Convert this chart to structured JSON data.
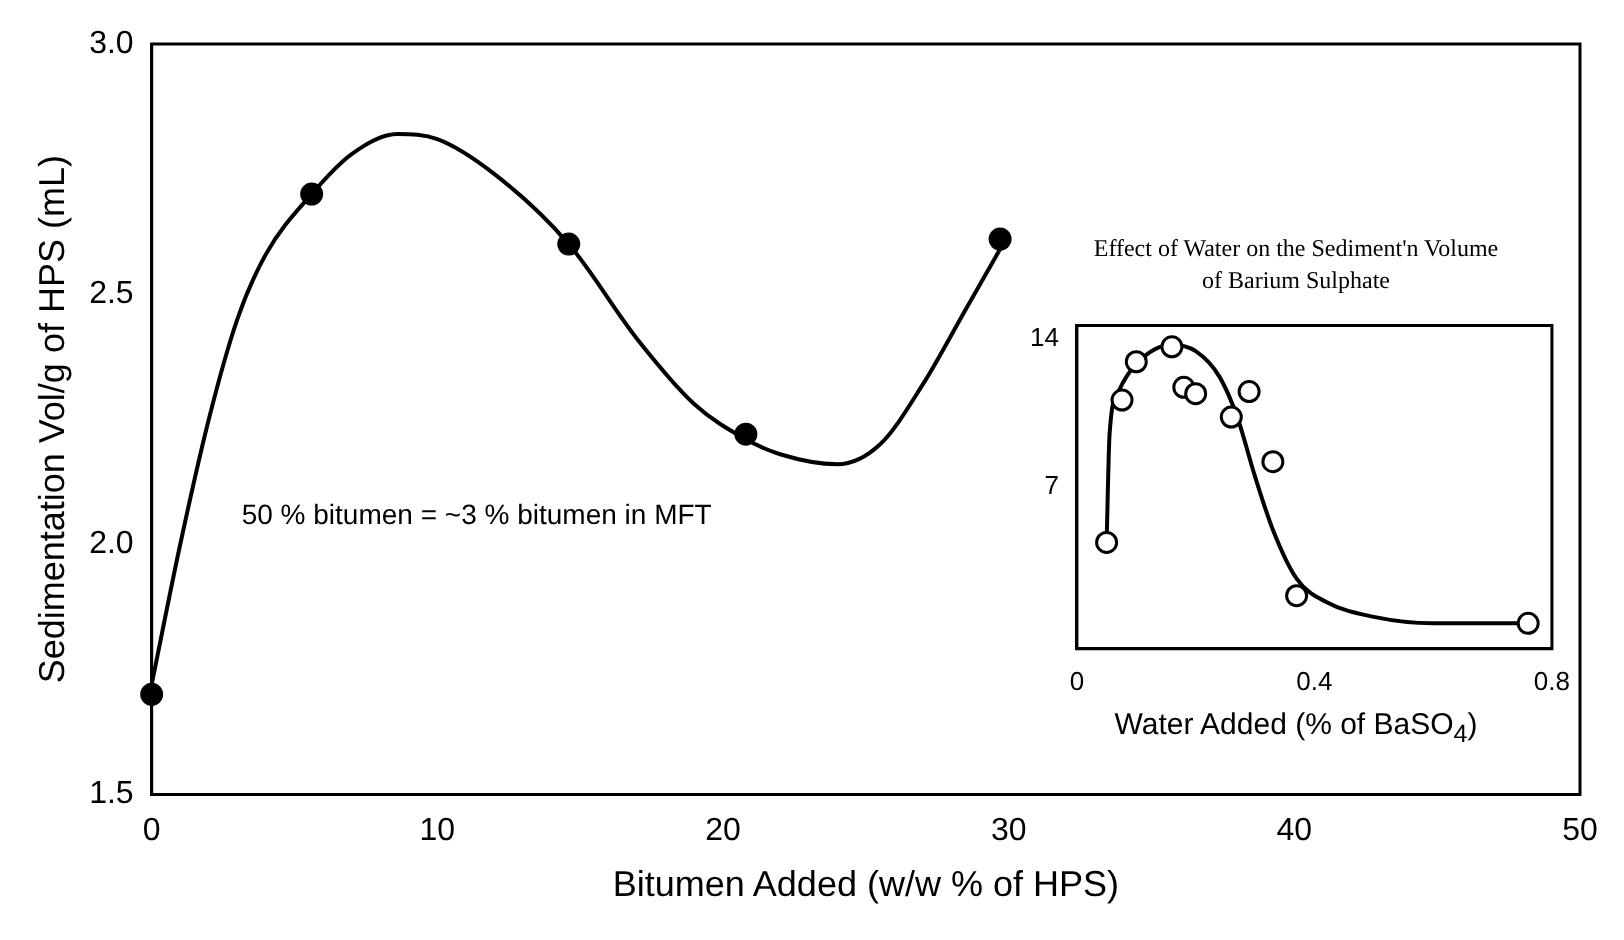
{
  "chart_data": [
    {
      "type": "scatter",
      "xlabel": "Bitumen Added (w/w % of HPS)",
      "ylabel": "Sedimentation Vol/g of HPS (mL)",
      "annotations": [
        "50 % bitumen = ~3 % bitumen in MFT"
      ],
      "xlim": [
        0,
        50
      ],
      "xticks": [
        0,
        10,
        20,
        30,
        40,
        50
      ],
      "ylim": [
        1.5,
        3.0
      ],
      "yticks": [
        1.5,
        {
          "value": 2,
          "label": "2.0"
        },
        2.5,
        {
          "value": 3,
          "label": "3.0"
        }
      ],
      "series": [
        {
          "marker": "circle",
          "color": "#000000",
          "x": [
            0,
            5.6,
            14.6,
            20.8,
            29.7
          ],
          "values": [
            1.7,
            2.7,
            2.6,
            2.22,
            2.61
          ]
        },
        {
          "type": "line",
          "marker": "none",
          "color": "#000000",
          "x": [
            0,
            1,
            2,
            3,
            4,
            5.6,
            7,
            8.6,
            10,
            12,
            14.6,
            17,
            19,
            20.8,
            22,
            24,
            25.5,
            27,
            28.5,
            29.7
          ],
          "values": [
            1.72,
            2.0,
            2.25,
            2.45,
            2.58,
            2.7,
            2.78,
            2.82,
            2.81,
            2.74,
            2.6,
            2.41,
            2.28,
            2.21,
            2.18,
            2.16,
            2.2,
            2.32,
            2.47,
            2.59
          ]
        }
      ]
    },
    {
      "type": "scatter",
      "title": "Effect of Water on the Sediment'n Volume of Barium Sulphate",
      "xlabel": "Water Added (% of BaSO$_{4}$)",
      "xlim": [
        0,
        0.8
      ],
      "xticks": [
        0,
        0.4,
        0.8
      ],
      "ylim": [
        -0.6,
        14.6
      ],
      "yticks": [
        7,
        14
      ],
      "series": [
        {
          "marker": "circle",
          "color": "#ffffff",
          "x": [
            0.05,
            0.076,
            0.1,
            0.16,
            0.18,
            0.2,
            0.26,
            0.29,
            0.33,
            0.37,
            0.76
          ],
          "values": [
            4.4,
            11.1,
            12.9,
            13.6,
            11.7,
            11.4,
            10.3,
            11.5,
            8.2,
            1.9,
            0.6
          ]
        },
        {
          "type": "line",
          "marker": "none",
          "color": "#000000",
          "x": [
            0.05,
            0.055,
            0.07,
            0.1,
            0.16,
            0.2,
            0.24,
            0.27,
            0.3,
            0.33,
            0.37,
            0.42,
            0.5,
            0.6,
            0.76
          ],
          "values": [
            4.4,
            9.5,
            11.5,
            12.8,
            13.7,
            13.4,
            12.2,
            10.3,
            7.5,
            5.0,
            2.7,
            1.6,
            0.9,
            0.6,
            0.6
          ]
        }
      ]
    }
  ]
}
